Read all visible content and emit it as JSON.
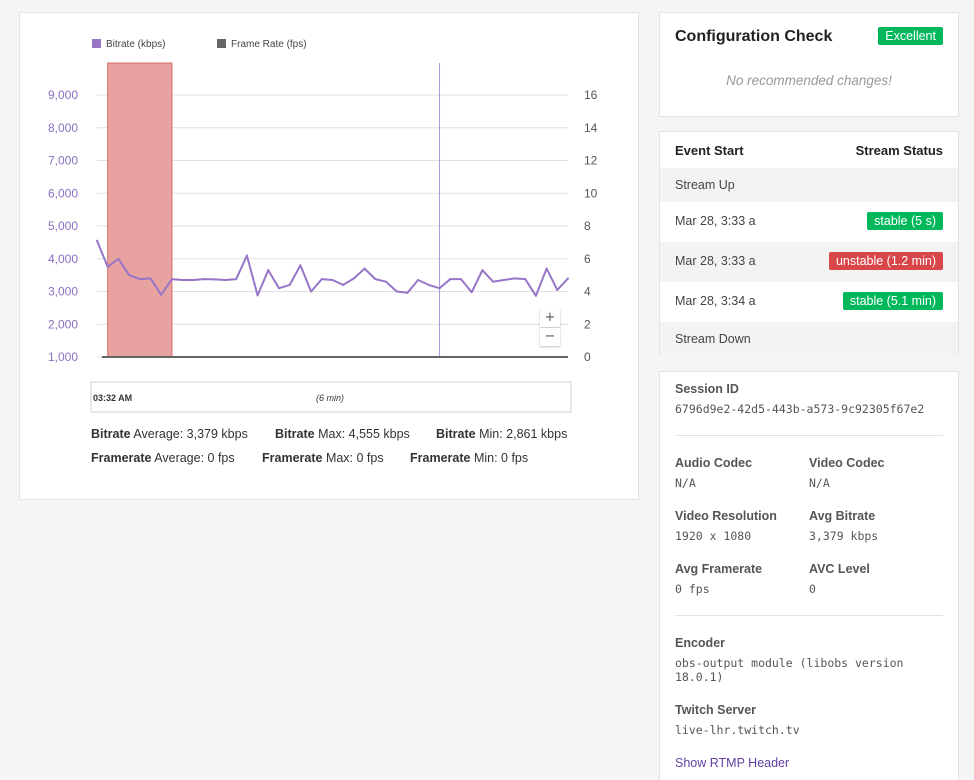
{
  "chart_panel": {
    "legend": [
      {
        "label": "Bitrate (kbps)",
        "color": "#9776c8"
      },
      {
        "label": "Frame Rate (fps)",
        "color": "#666666"
      }
    ],
    "zoom_in_label": "+",
    "zoom_out_label": "−",
    "navigator_time": "03:32 AM",
    "navigator_span": "(6 min)",
    "stats": {
      "bitrate_label": "Bitrate",
      "bitrate_average": "Average: 3,379 kbps",
      "bitrate_max": "Max: 4,555 kbps",
      "bitrate_min": "Min: 2,861 kbps",
      "framerate_label": "Framerate",
      "framerate_average": "Average: 0 fps",
      "framerate_max": "Max: 0 fps",
      "framerate_min": "Min: 0 fps"
    }
  },
  "chart_data": {
    "type": "line",
    "series": [
      {
        "name": "Bitrate (kbps)",
        "axis": "left",
        "color": "#9776c8",
        "values": [
          4555,
          3750,
          4000,
          3500,
          3380,
          3400,
          2900,
          3380,
          3350,
          3350,
          3380,
          3370,
          3350,
          3380,
          4100,
          2880,
          3650,
          3100,
          3200,
          3800,
          3000,
          3380,
          3350,
          3200,
          3400,
          3700,
          3380,
          3300,
          3000,
          2960,
          3350,
          3200,
          3100,
          3380,
          3380,
          2980,
          3650,
          3300,
          3350,
          3400,
          3380,
          2870,
          3700,
          3050,
          3400
        ]
      },
      {
        "name": "Frame Rate (fps)",
        "axis": "right",
        "color": "#666666",
        "values": [
          0,
          0
        ]
      }
    ],
    "y_left": {
      "ticks": [
        "1,000",
        "2,000",
        "3,000",
        "4,000",
        "5,000",
        "6,000",
        "7,000",
        "8,000",
        "9,000"
      ],
      "min": 1000,
      "max": 9000
    },
    "y_right": {
      "ticks": [
        "0",
        "2",
        "4",
        "6",
        "8",
        "10",
        "12",
        "14",
        "16"
      ],
      "min": 0,
      "max": 16
    },
    "highlight_band": {
      "from_index": 1,
      "to_index": 7,
      "color": "#e8a3a1"
    },
    "marker_index": 32,
    "grid": true,
    "legend_position": "top-left"
  },
  "config": {
    "title": "Configuration Check",
    "badge": "Excellent",
    "note": "No recommended changes!"
  },
  "events": {
    "header_left": "Event Start",
    "header_right": "Stream Status",
    "rows": [
      {
        "label": "Stream Up",
        "status": ""
      },
      {
        "label": "Mar 28, 3:33 a",
        "status": "stable (5 s)"
      },
      {
        "label": "Mar 28, 3:33 a",
        "status": "unstable (1.2 min)"
      },
      {
        "label": "Mar 28, 3:34 a",
        "status": "stable (5.1 min)"
      },
      {
        "label": "Stream Down",
        "status": ""
      }
    ]
  },
  "info": {
    "session_label": "Session ID",
    "session_value": "6796d9e2-42d5-443b-a573-9c92305f67e2",
    "audio_codec_label": "Audio Codec",
    "audio_codec_value": "N/A",
    "video_codec_label": "Video Codec",
    "video_codec_value": "N/A",
    "resolution_label": "Video Resolution",
    "resolution_value": "1920 x 1080",
    "avg_bitrate_label": "Avg Bitrate",
    "avg_bitrate_value": "3,379 kbps",
    "avg_framerate_label": "Avg Framerate",
    "avg_framerate_value": "0 fps",
    "avc_label": "AVC Level",
    "avc_value": "0",
    "encoder_label": "Encoder",
    "encoder_value": "obs-output module (libobs version 18.0.1)",
    "server_label": "Twitch Server",
    "server_value": "live-lhr.twitch.tv",
    "rtmp_link": "Show RTMP Header"
  }
}
